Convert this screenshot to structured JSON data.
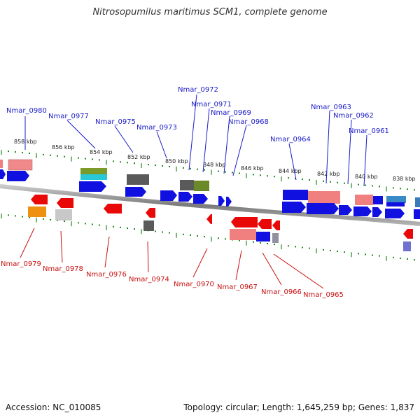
{
  "title": "Nitrosopumilus maritimus SCM1, complete genome",
  "footer": {
    "accession": "Accession: NC_010085",
    "topology": "Topology: circular; Length: 1,645,259 bp; Genes: 1,837"
  },
  "colors": {
    "forward_label": "#1a1ac8",
    "reverse_label": "#c81010",
    "backbone": "#8a8a8a",
    "ticks": "#1a8a1a"
  },
  "scale_labels": [
    "858 kbp",
    "856 kbp",
    "854 kbp",
    "852 kbp",
    "850 kbp",
    "848 kbp",
    "846 kbp",
    "844 kbp",
    "842 kbp",
    "840 kbp",
    "838 kbp"
  ],
  "forward_genes": [
    "Nmar_0980",
    "Nmar_0977",
    "Nmar_0975",
    "Nmar_0973",
    "Nmar_0972",
    "Nmar_0971",
    "Nmar_0969",
    "Nmar_0968",
    "Nmar_0964",
    "Nmar_0963",
    "Nmar_0962",
    "Nmar_0961"
  ],
  "reverse_genes": [
    "Nmar_0979",
    "Nmar_0978",
    "Nmar_0976",
    "Nmar_0974",
    "Nmar_0970",
    "Nmar_0967",
    "Nmar_0966",
    "Nmar_0965"
  ]
}
